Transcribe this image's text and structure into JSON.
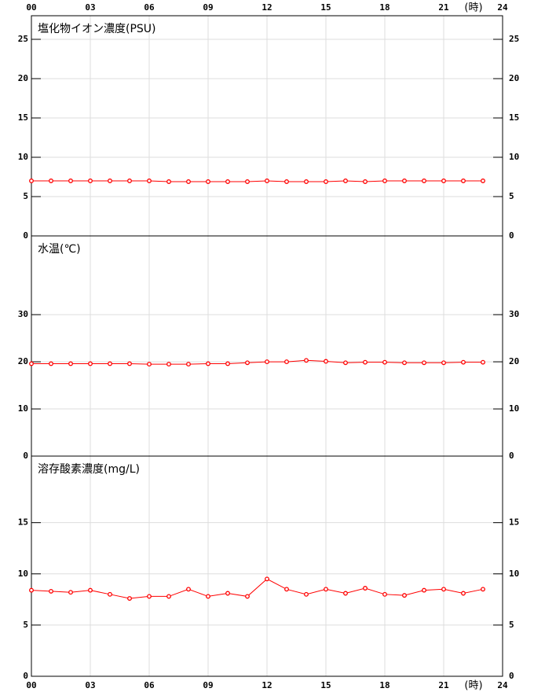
{
  "chart_data": [
    {
      "type": "line",
      "title": "塩化物イオン濃度(PSU)",
      "x_label": "(時)",
      "x": [
        0,
        1,
        2,
        3,
        4,
        5,
        6,
        7,
        8,
        9,
        10,
        11,
        12,
        13,
        14,
        15,
        16,
        17,
        18,
        19,
        20,
        21,
        22,
        23
      ],
      "xlim": [
        0,
        24
      ],
      "xticks": [
        {
          "value": 0,
          "label": "00"
        },
        {
          "value": 3,
          "label": "03"
        },
        {
          "value": 6,
          "label": "06"
        },
        {
          "value": 9,
          "label": "09"
        },
        12,
        15,
        18,
        21,
        24
      ],
      "ylim": [
        0,
        28
      ],
      "yticks": [
        0,
        5,
        10,
        15,
        20,
        25
      ],
      "grid": true,
      "series": [
        {
          "color": "#ff0000",
          "values": [
            7.0,
            7.0,
            7.0,
            7.0,
            7.0,
            7.0,
            7.0,
            6.9,
            6.9,
            6.9,
            6.9,
            6.9,
            7.0,
            6.9,
            6.9,
            6.9,
            7.0,
            6.9,
            7.0,
            7.0,
            7.0,
            7.0,
            7.0,
            7.0
          ]
        }
      ]
    },
    {
      "type": "line",
      "title": "水温(℃)",
      "x": [
        0,
        1,
        2,
        3,
        4,
        5,
        6,
        7,
        8,
        9,
        10,
        11,
        12,
        13,
        14,
        15,
        16,
        17,
        18,
        19,
        20,
        21,
        22,
        23
      ],
      "xlim": [
        0,
        24
      ],
      "xticks": [
        {
          "value": 0,
          "label": "00"
        },
        {
          "value": 3,
          "label": "03"
        },
        {
          "value": 6,
          "label": "06"
        },
        {
          "value": 9,
          "label": "09"
        },
        12,
        15,
        18,
        21,
        24
      ],
      "ylim": [
        0,
        46.7
      ],
      "yticks": [
        0,
        10,
        20,
        30
      ],
      "grid": true,
      "series": [
        {
          "color": "#ff0000",
          "values": [
            19.6,
            19.6,
            19.6,
            19.6,
            19.6,
            19.6,
            19.5,
            19.5,
            19.5,
            19.6,
            19.6,
            19.8,
            20.0,
            20.0,
            20.3,
            20.1,
            19.8,
            19.9,
            19.9,
            19.8,
            19.8,
            19.8,
            19.9,
            19.9
          ]
        }
      ]
    },
    {
      "type": "line",
      "title": "溶存酸素濃度(mg/L)",
      "x_label": "(時)",
      "x": [
        0,
        1,
        2,
        3,
        4,
        5,
        6,
        7,
        8,
        9,
        10,
        11,
        12,
        13,
        14,
        15,
        16,
        17,
        18,
        19,
        20,
        21,
        22,
        23
      ],
      "xlim": [
        0,
        24
      ],
      "xticks": [
        {
          "value": 0,
          "label": "00"
        },
        {
          "value": 3,
          "label": "03"
        },
        {
          "value": 6,
          "label": "06"
        },
        {
          "value": 9,
          "label": "09"
        },
        12,
        15,
        18,
        21,
        24
      ],
      "ylim": [
        0,
        21.5
      ],
      "yticks": [
        0,
        5,
        10,
        15
      ],
      "grid": true,
      "series": [
        {
          "color": "#ff0000",
          "values": [
            8.4,
            8.3,
            8.2,
            8.4,
            8.0,
            7.6,
            7.8,
            7.8,
            8.5,
            7.8,
            8.1,
            7.8,
            9.5,
            8.5,
            8.0,
            8.5,
            8.1,
            8.6,
            8.0,
            7.9,
            8.4,
            8.5,
            8.1,
            8.5
          ]
        }
      ]
    }
  ]
}
